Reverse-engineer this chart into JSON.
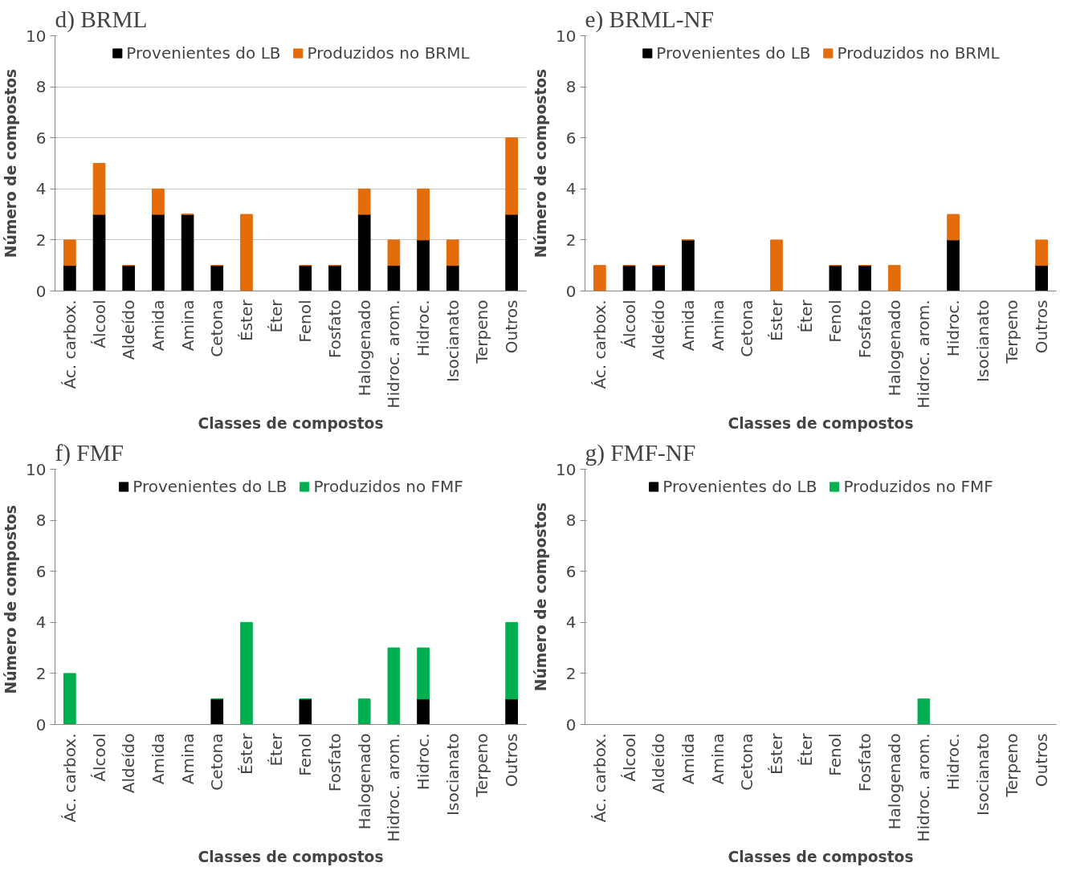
{
  "chart_data": [
    {
      "type": "bar",
      "title": "d)  BRML",
      "xlabel": "Classes de compostos",
      "ylabel": "Número de compostos",
      "stacked": true,
      "ylim": [
        0,
        10
      ],
      "yticks": [
        0,
        2,
        4,
        6,
        8,
        10
      ],
      "grid": "y",
      "legend": "top",
      "categories": [
        "Ác. carbox.",
        "Álcool",
        "Aldeído",
        "Amida",
        "Amina",
        "Cetona",
        "Éster",
        "Éter",
        "Fenol",
        "Fosfato",
        "Halogenado",
        "Hidroc. arom.",
        "Hidroc.",
        "Isocianato",
        "Terpeno",
        "Outros"
      ],
      "series": [
        {
          "name": "Provenientes do LB",
          "color": "#000000",
          "values": [
            1,
            3,
            1,
            3,
            3,
            1,
            0,
            0,
            1,
            1,
            3,
            1,
            2,
            1,
            0,
            3
          ]
        },
        {
          "name": "Produzidos no BRML",
          "color": "#e46c0a",
          "values": [
            1,
            2,
            0,
            1,
            0,
            0,
            3,
            0,
            0,
            0,
            1,
            1,
            2,
            1,
            0,
            3
          ]
        }
      ]
    },
    {
      "type": "bar",
      "title": "e)  BRML-NF",
      "xlabel": "Classes de compostos",
      "ylabel": "Número de compostos",
      "stacked": true,
      "ylim": [
        0,
        10
      ],
      "yticks": [
        0,
        2,
        4,
        6,
        8,
        10
      ],
      "grid": false,
      "legend": "top",
      "categories": [
        "Ác. carbox.",
        "Álcool",
        "Aldeído",
        "Amida",
        "Amina",
        "Cetona",
        "Éster",
        "Éter",
        "Fenol",
        "Fosfato",
        "Halogenado",
        "Hidroc. arom.",
        "Hidroc.",
        "Isocianato",
        "Terpeno",
        "Outros"
      ],
      "series": [
        {
          "name": "Provenientes do LB",
          "color": "#000000",
          "values": [
            0,
            1,
            1,
            2,
            0,
            0,
            0,
            0,
            1,
            1,
            0,
            0,
            2,
            0,
            0,
            1
          ]
        },
        {
          "name": "Produzidos no BRML",
          "color": "#e46c0a",
          "values": [
            1,
            0,
            0,
            0,
            0,
            0,
            2,
            0,
            0,
            0,
            1,
            0,
            1,
            0,
            0,
            1
          ]
        }
      ]
    },
    {
      "type": "bar",
      "title": "f)  FMF",
      "xlabel": "Classes de compostos",
      "ylabel": "Número de  compostos",
      "stacked": true,
      "ylim": [
        0,
        10
      ],
      "yticks": [
        0,
        2,
        4,
        6,
        8,
        10
      ],
      "grid": false,
      "legend": "top",
      "categories": [
        "Ác. carbox.",
        "Álcool",
        "Aldeído",
        "Amida",
        "Amina",
        "Cetona",
        "Éster",
        "Éter",
        "Fenol",
        "Fosfato",
        "Halogenado",
        "Hidroc. arom.",
        "Hidroc.",
        "Isocianato",
        "Terpeno",
        "Outros"
      ],
      "series": [
        {
          "name": "Provenientes do LB",
          "color": "#000000",
          "values": [
            0,
            0,
            0,
            0,
            0,
            1,
            0,
            0,
            1,
            0,
            0,
            0,
            1,
            0,
            0,
            1
          ]
        },
        {
          "name": "Produzidos no FMF",
          "color": "#00b050",
          "values": [
            2,
            0,
            0,
            0,
            0,
            0,
            4,
            0,
            0,
            0,
            1,
            3,
            2,
            0,
            0,
            3
          ]
        }
      ]
    },
    {
      "type": "bar",
      "title": "g)  FMF-NF",
      "xlabel": "Classes de compostos",
      "ylabel": "Número de compostos",
      "stacked": true,
      "ylim": [
        0,
        10
      ],
      "yticks": [
        0,
        2,
        4,
        6,
        8,
        10
      ],
      "grid": false,
      "legend": "top",
      "categories": [
        "Ác. carbox.",
        "Álcool",
        "Aldeído",
        "Amida",
        "Amina",
        "Cetona",
        "Éster",
        "Éter",
        "Fenol",
        "Fosfato",
        "Halogenado",
        "Hidroc. arom.",
        "Hidroc.",
        "Isocianato",
        "Terpeno",
        "Outros"
      ],
      "series": [
        {
          "name": "Provenientes do LB",
          "color": "#000000",
          "values": [
            0,
            0,
            0,
            0,
            0,
            0,
            0,
            0,
            0,
            0,
            0,
            0,
            0,
            0,
            0,
            0
          ]
        },
        {
          "name": "Produzidos no FMF",
          "color": "#00b050",
          "values": [
            0,
            0,
            0,
            0,
            0,
            0,
            0,
            0,
            0,
            0,
            0,
            1,
            0,
            0,
            0,
            0
          ]
        }
      ]
    }
  ]
}
